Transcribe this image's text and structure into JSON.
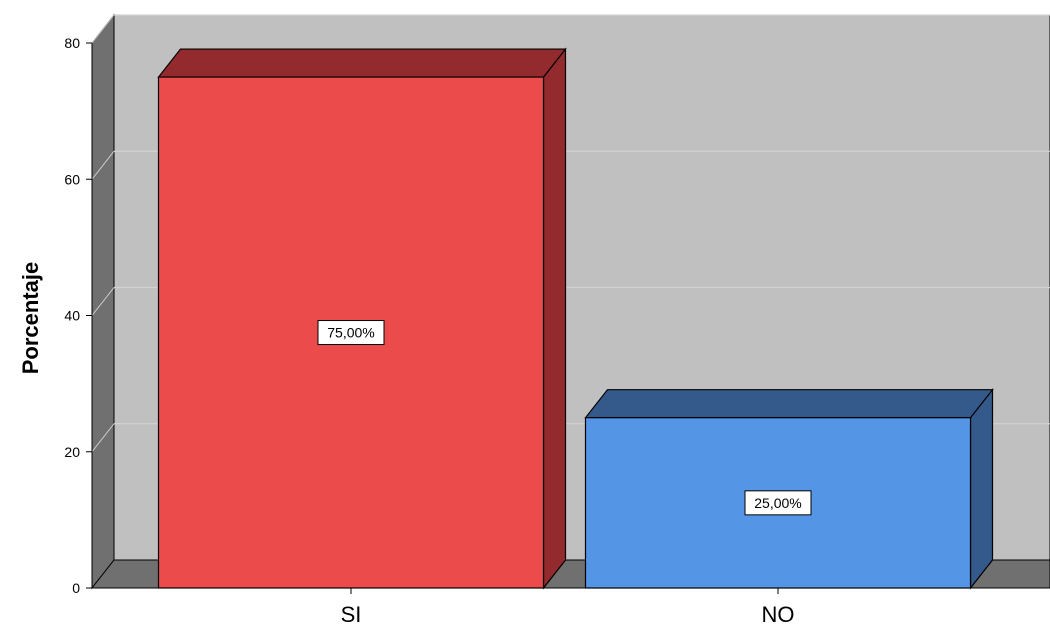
{
  "chart_data": {
    "type": "bar",
    "categories": [
      "SI",
      "NO"
    ],
    "values": [
      75,
      25
    ],
    "data_labels": [
      "75,00%",
      "25,00%"
    ],
    "ylabel": "Porcentaje",
    "xlabel": "",
    "ylim": [
      0,
      80
    ],
    "yticks": [
      "0",
      "20",
      "40",
      "60",
      "80"
    ],
    "grid": true,
    "style": "3d",
    "colors": {
      "bars": [
        {
          "front": "#ec4b4c",
          "side": "#932a2d"
        },
        {
          "front": "#5595e5",
          "side": "#335a8b"
        }
      ],
      "wall": "#c0c0c0",
      "wall_side": "#707070",
      "floor": "#707070",
      "gridline": "#d2d2d2"
    }
  }
}
